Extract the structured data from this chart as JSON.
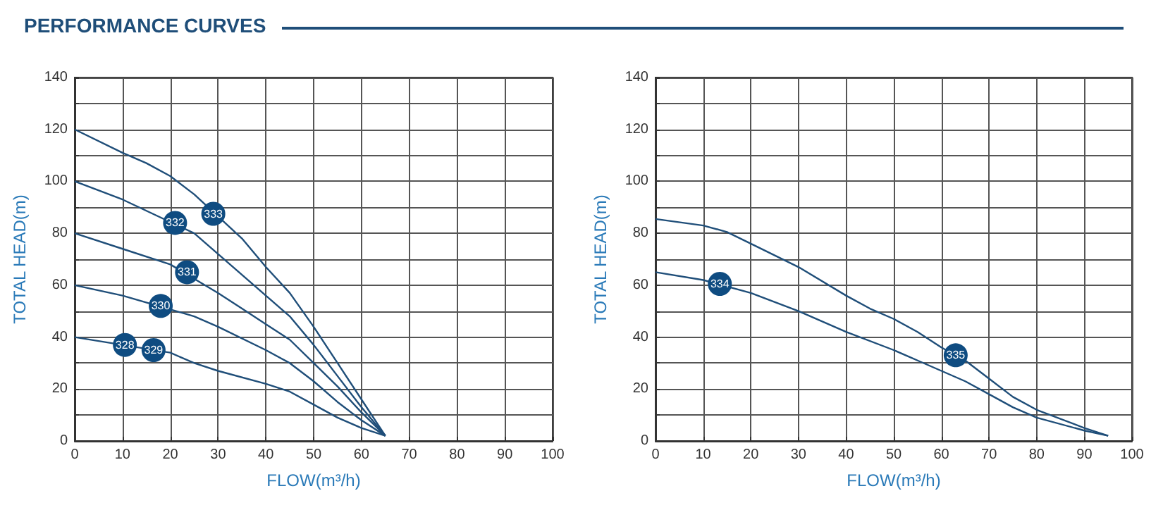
{
  "chart_data": [
    {
      "type": "line",
      "title": "PERFORMANCE CURVES",
      "xlabel": "FLOW(m³/h)",
      "ylabel": "TOTAL HEAD(m)",
      "xlim": [
        0,
        100
      ],
      "xticks": [
        0,
        10,
        20,
        30,
        40,
        50,
        60,
        70,
        80,
        90,
        100
      ],
      "ylim": [
        0,
        140
      ],
      "yticks": [
        0,
        {
          "value": 10,
          "label": null
        },
        20,
        {
          "value": 30,
          "label": null
        },
        40,
        {
          "value": 50,
          "label": null
        },
        60,
        {
          "value": 70,
          "label": null
        },
        80,
        {
          "value": 90,
          "label": null
        },
        100,
        {
          "value": 110,
          "label": null
        },
        120,
        {
          "value": 130,
          "label": null
        },
        140
      ],
      "grid": true,
      "marker": "none",
      "line_style": "solid",
      "series": [
        {
          "color": "#1f4e79",
          "x": [
            0,
            10,
            15,
            20,
            25,
            35,
            40,
            45,
            50,
            55,
            60,
            65
          ],
          "values": [
            120,
            111,
            107,
            102,
            95,
            78,
            67,
            57,
            44,
            30,
            16,
            2
          ]
        },
        {
          "color": "#1f4e79",
          "x": [
            0,
            10,
            25,
            30,
            35,
            40,
            45,
            50,
            55,
            60,
            65
          ],
          "values": [
            100,
            93,
            80,
            72,
            64,
            56,
            48,
            37,
            25,
            13,
            2
          ]
        },
        {
          "color": "#1f4e79",
          "x": [
            0,
            10,
            20,
            30,
            35,
            40,
            45,
            50,
            55,
            60,
            65
          ],
          "values": [
            80,
            74,
            68,
            57,
            51,
            45,
            39,
            30,
            21,
            11,
            2
          ]
        },
        {
          "color": "#1f4e79",
          "x": [
            0,
            10,
            25,
            30,
            40,
            45,
            50,
            55,
            60,
            65
          ],
          "values": [
            60,
            56,
            48,
            44,
            35,
            30,
            23,
            15,
            8,
            2
          ]
        },
        {
          "color": "#1f4e79",
          "x": [
            0,
            20,
            25,
            30,
            40,
            45,
            50,
            55,
            60,
            65
          ],
          "values": [
            40,
            34,
            30,
            27,
            22,
            19,
            14,
            9,
            5,
            2
          ]
        }
      ],
      "annotations": [
        {
          "text": "333",
          "x": 29,
          "y": 87.5
        },
        {
          "text": "332",
          "x": 21,
          "y": 84
        },
        {
          "text": "331",
          "x": 23.5,
          "y": 65
        },
        {
          "text": "330",
          "x": 18,
          "y": 52
        },
        {
          "text": "328",
          "x": 10.5,
          "y": 37
        },
        {
          "text": "329",
          "x": 16.5,
          "y": 35
        }
      ]
    },
    {
      "type": "line",
      "xlabel": "FLOW(m³/h)",
      "ylabel": "TOTAL HEAD(m)",
      "xlim": [
        0,
        100
      ],
      "xticks": [
        0,
        10,
        20,
        30,
        40,
        50,
        60,
        70,
        80,
        90,
        100
      ],
      "ylim": [
        0,
        140
      ],
      "yticks": [
        0,
        {
          "value": 10,
          "label": null
        },
        20,
        {
          "value": 30,
          "label": null
        },
        40,
        {
          "value": 50,
          "label": null
        },
        60,
        {
          "value": 70,
          "label": null
        },
        80,
        {
          "value": 90,
          "label": null
        },
        100,
        {
          "value": 110,
          "label": null
        },
        120,
        {
          "value": 130,
          "label": null
        },
        140
      ],
      "grid": true,
      "marker": "none",
      "line_style": "solid",
      "series": [
        {
          "color": "#1f4e79",
          "x": [
            0,
            10,
            15,
            20,
            30,
            40,
            45,
            50,
            55,
            60,
            65,
            70,
            75,
            80,
            90,
            95
          ],
          "values": [
            85.5,
            83,
            80.5,
            76,
            67,
            56,
            51,
            47,
            42,
            36,
            31,
            24,
            17,
            12,
            5,
            2
          ]
        },
        {
          "color": "#1f4e79",
          "x": [
            0,
            10,
            20,
            30,
            40,
            50,
            55,
            60,
            65,
            70,
            75,
            80,
            90,
            95
          ],
          "values": [
            65,
            62,
            57,
            50,
            42,
            35,
            31,
            27,
            23,
            18,
            13,
            9,
            4,
            2
          ]
        }
      ],
      "annotations": [
        {
          "text": "334",
          "x": 13.5,
          "y": 60.5
        },
        {
          "text": "335",
          "x": 63,
          "y": 33
        }
      ]
    }
  ]
}
